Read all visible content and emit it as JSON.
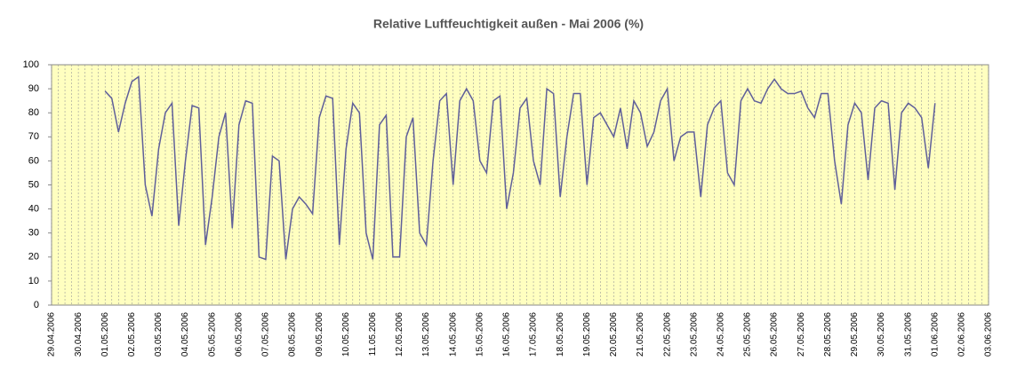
{
  "chart_data": {
    "type": "line",
    "title": "Relative Luftfeuchtigkeit außen - Mai 2006 (%)",
    "categories": [
      "29.04.2006",
      null,
      null,
      null,
      "30.04.2006",
      null,
      null,
      null,
      "01.05.2006",
      null,
      null,
      null,
      "02.05.2006",
      null,
      null,
      null,
      "03.05.2006",
      null,
      null,
      null,
      "04.05.2006",
      null,
      null,
      null,
      "05.05.2006",
      null,
      null,
      null,
      "06.05.2006",
      null,
      null,
      null,
      "07.05.2006",
      null,
      null,
      null,
      "08.05.2006",
      null,
      null,
      null,
      "09.05.2006",
      null,
      null,
      null,
      "10.05.2006",
      null,
      null,
      null,
      "11.05.2006",
      null,
      null,
      null,
      "12.05.2006",
      null,
      null,
      null,
      "13.05.2006",
      null,
      null,
      null,
      "14.05.2006",
      null,
      null,
      null,
      "15.05.2006",
      null,
      null,
      null,
      "16.05.2006",
      null,
      null,
      null,
      "17.05.2006",
      null,
      null,
      null,
      "18.05.2006",
      null,
      null,
      null,
      "19.05.2006",
      null,
      null,
      null,
      "20.05.2006",
      null,
      null,
      null,
      "21.05.2006",
      null,
      null,
      null,
      "22.05.2006",
      null,
      null,
      null,
      "23.05.2006",
      null,
      null,
      null,
      "24.05.2006",
      null,
      null,
      null,
      "25.05.2006",
      null,
      null,
      null,
      "26.05.2006",
      null,
      null,
      null,
      "27.05.2006",
      null,
      null,
      null,
      "28.05.2006",
      null,
      null,
      null,
      "29.05.2006",
      null,
      null,
      null,
      "30.05.2006",
      null,
      null,
      null,
      "31.05.2006",
      null,
      null,
      null,
      "01.06.2006",
      null,
      null,
      null,
      "02.06.2006",
      null,
      null,
      null,
      "03.06.2006"
    ],
    "series": [
      {
        "color": "#5f5f9a",
        "values": [
          null,
          null,
          null,
          null,
          null,
          null,
          null,
          null,
          89,
          86,
          72,
          84,
          93,
          95,
          50,
          37,
          65,
          80,
          84,
          33,
          60,
          83,
          82,
          25,
          45,
          70,
          80,
          32,
          75,
          85,
          84,
          20,
          19,
          62,
          60,
          19,
          40,
          45,
          42,
          38,
          78,
          87,
          86,
          25,
          65,
          84,
          80,
          30,
          19,
          75,
          79,
          20,
          20,
          70,
          78,
          30,
          25,
          60,
          85,
          88,
          50,
          85,
          90,
          85,
          60,
          55,
          85,
          87,
          40,
          55,
          82,
          86,
          60,
          50,
          90,
          88,
          45,
          70,
          88,
          88,
          50,
          78,
          80,
          75,
          70,
          82,
          65,
          85,
          80,
          66,
          72,
          85,
          90,
          60,
          70,
          72,
          72,
          45,
          75,
          82,
          85,
          55,
          50,
          85,
          90,
          85,
          84,
          90,
          94,
          90,
          88,
          88,
          89,
          82,
          78,
          88,
          88,
          60,
          42,
          75,
          84,
          80,
          52,
          82,
          85,
          84,
          48,
          80,
          84,
          82,
          78,
          57,
          84,
          null,
          null,
          null,
          null,
          null,
          null,
          null,
          null
        ]
      }
    ],
    "ylim": [
      0,
      100
    ],
    "yticks": [
      0,
      10,
      20,
      30,
      40,
      50,
      60,
      70,
      80,
      90,
      100
    ],
    "grid": true,
    "background": "#ffffc0"
  }
}
